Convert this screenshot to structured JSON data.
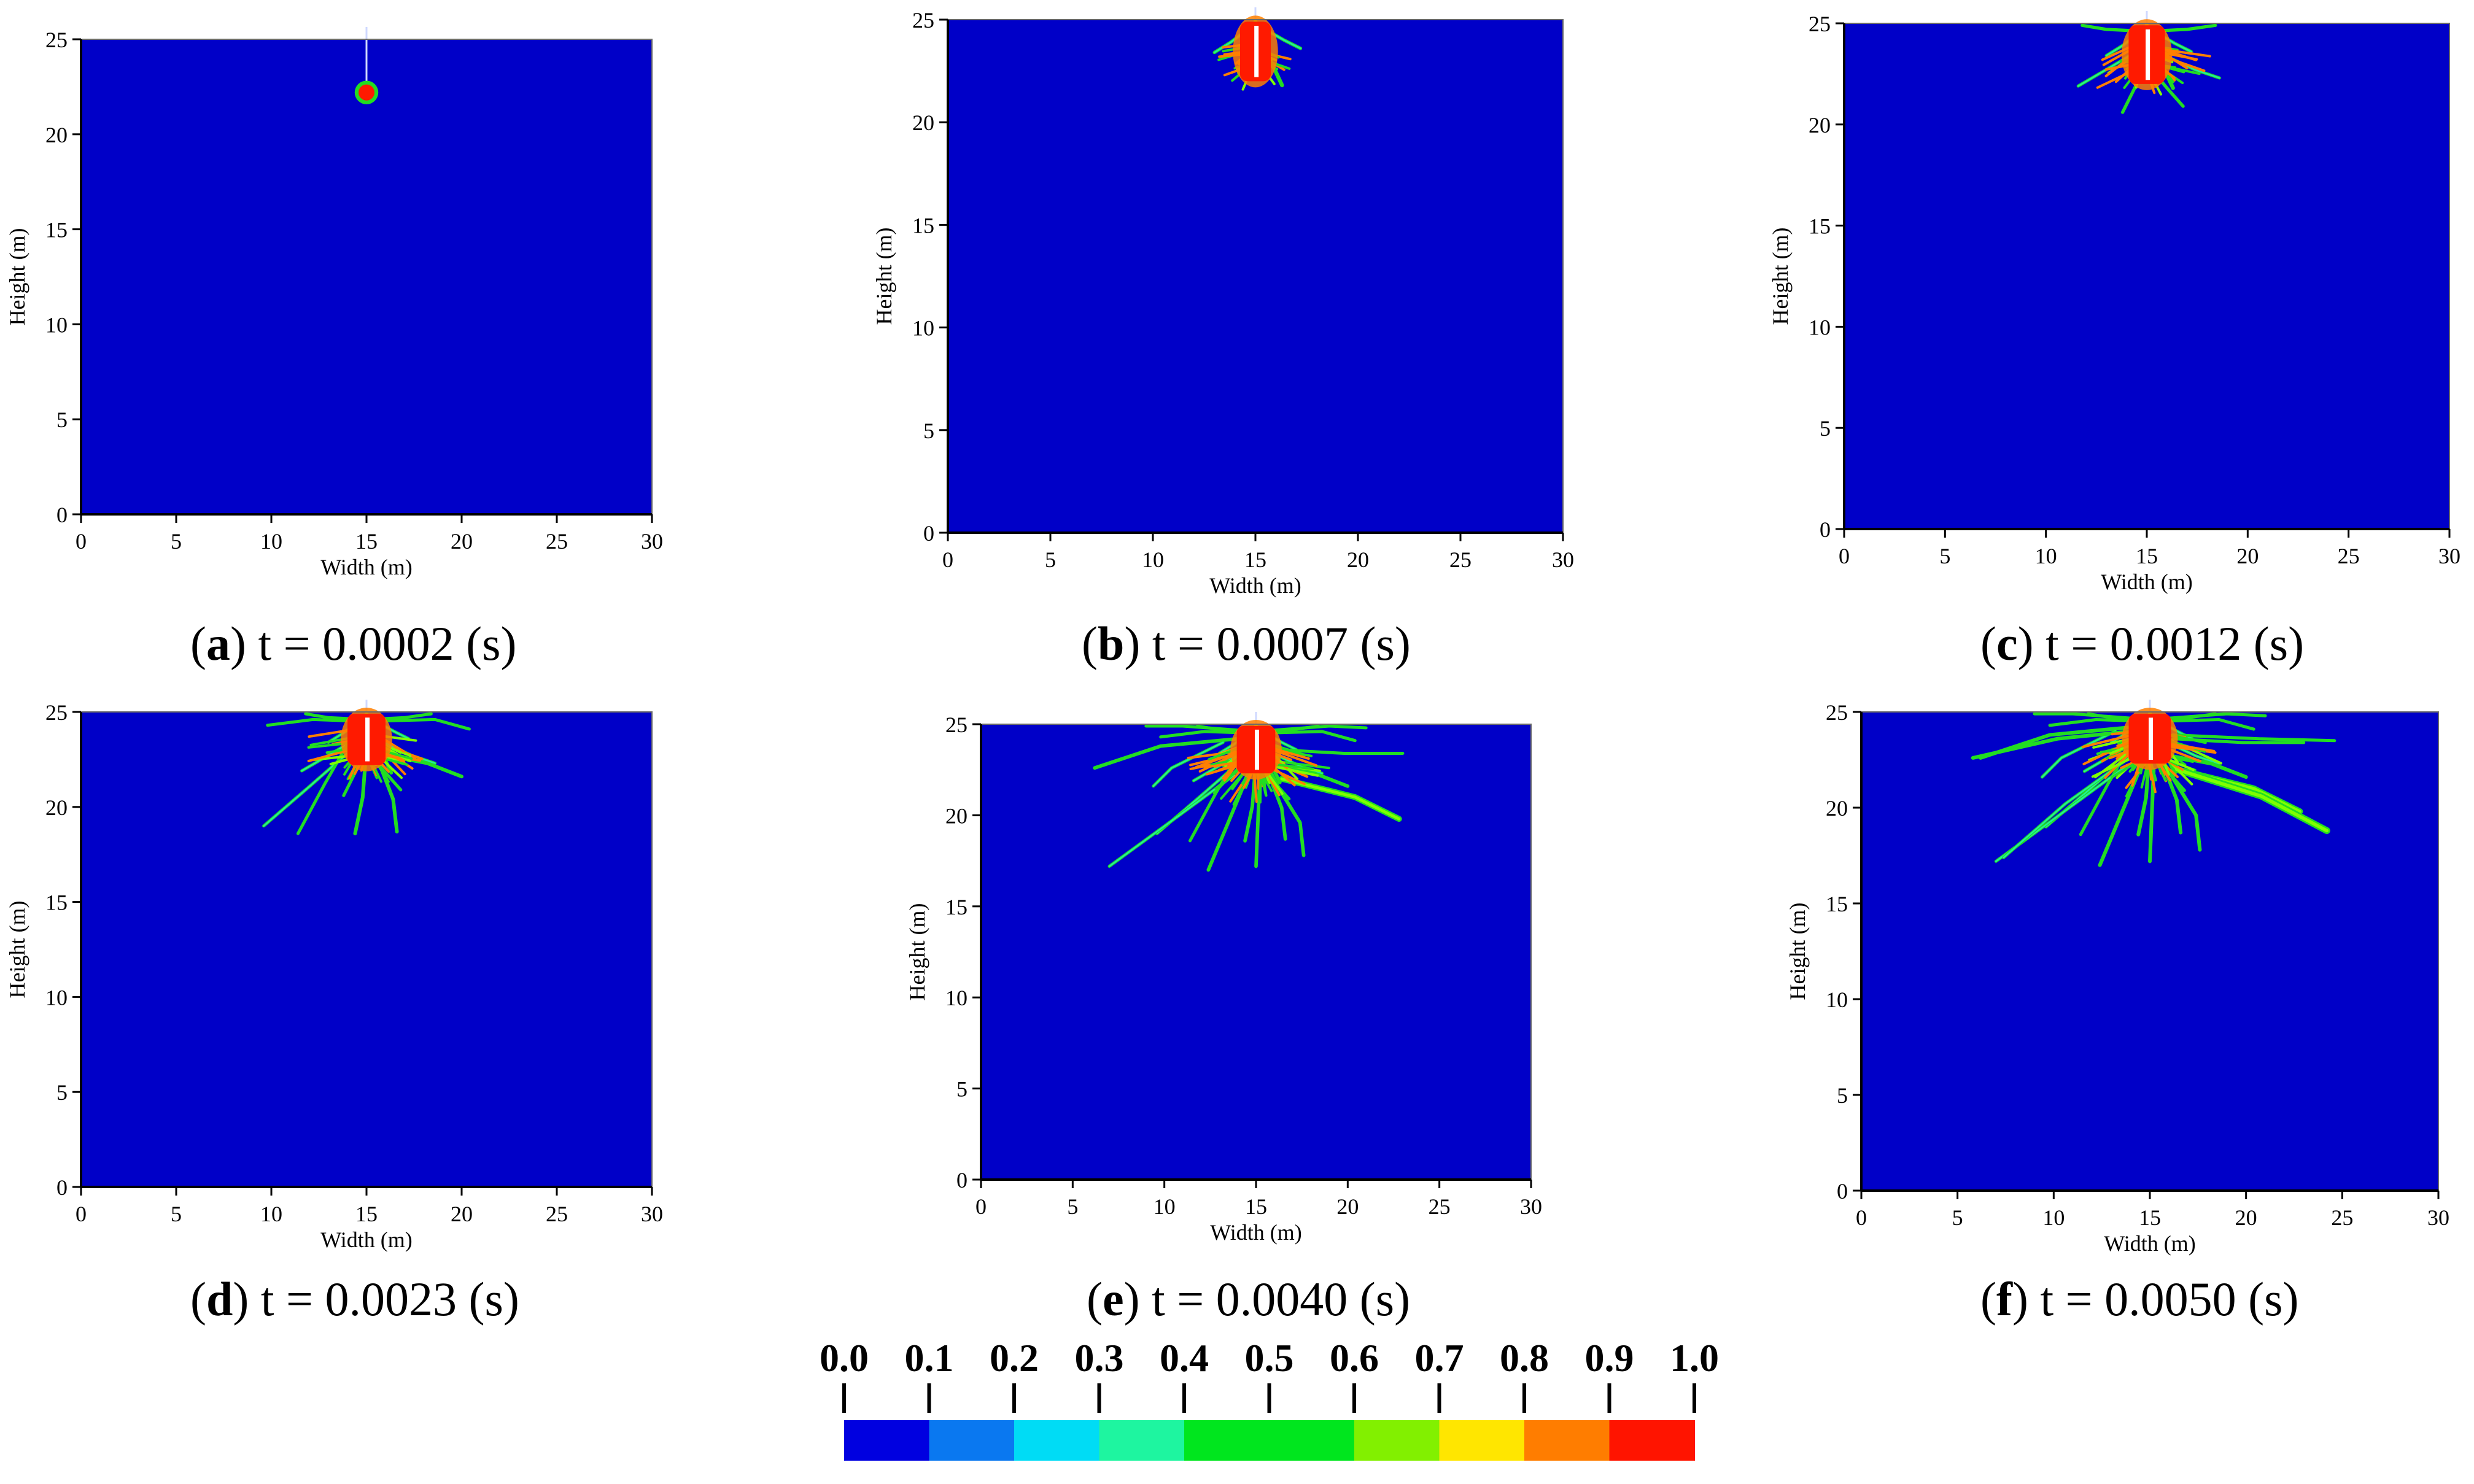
{
  "colors": {
    "background": "#0000c8",
    "frame": "#6a6a6a",
    "crack_red": "#ff1a00",
    "crack_orange": "#ff7f00",
    "crack_green": "#22dd22",
    "crack_lightgreen": "#7fff00",
    "crack_teal": "#22ee99",
    "crack_yellow": "#ffea00",
    "white": "#ffffff"
  },
  "chart_data": [
    {
      "type": "heatmap",
      "panel": "a",
      "caption_label": "a",
      "caption_text": "t = 0.0002 (s)",
      "xlabel": "Width (m)",
      "ylabel": "Height (m)",
      "xlim": [
        0,
        30
      ],
      "ylim": [
        0,
        25
      ],
      "xticks": [
        "0",
        "5",
        "10",
        "15",
        "20",
        "25",
        "30"
      ],
      "yticks": [
        "0",
        "5",
        "10",
        "15",
        "20",
        "25"
      ],
      "stage": 0
    },
    {
      "type": "heatmap",
      "panel": "b",
      "caption_label": "b",
      "caption_text": "t = 0.0007 (s)",
      "xlabel": "Width (m)",
      "ylabel": "Height (m)",
      "xlim": [
        0,
        30
      ],
      "ylim": [
        0,
        25
      ],
      "xticks": [
        "0",
        "5",
        "10",
        "15",
        "20",
        "25",
        "30"
      ],
      "yticks": [
        "0",
        "5",
        "10",
        "15",
        "20",
        "25"
      ],
      "stage": 1
    },
    {
      "type": "heatmap",
      "panel": "c",
      "caption_label": "c",
      "caption_text": "t = 0.0012 (s)",
      "xlabel": "Width (m)",
      "ylabel": "Height (m)",
      "xlim": [
        0,
        30
      ],
      "ylim": [
        0,
        25
      ],
      "xticks": [
        "0",
        "5",
        "10",
        "15",
        "20",
        "25",
        "30"
      ],
      "yticks": [
        "0",
        "5",
        "10",
        "15",
        "20",
        "25"
      ],
      "stage": 2
    },
    {
      "type": "heatmap",
      "panel": "d",
      "caption_label": "d",
      "caption_text": "t = 0.0023 (s)",
      "xlabel": "Width (m)",
      "ylabel": "Height (m)",
      "xlim": [
        0,
        30
      ],
      "ylim": [
        0,
        25
      ],
      "xticks": [
        "0",
        "5",
        "10",
        "15",
        "20",
        "25",
        "30"
      ],
      "yticks": [
        "0",
        "5",
        "10",
        "15",
        "20",
        "25"
      ],
      "stage": 3
    },
    {
      "type": "heatmap",
      "panel": "e",
      "caption_label": "e",
      "caption_text": "t = 0.0040 (s)",
      "xlabel": "Width (m)",
      "ylabel": "Height (m)",
      "xlim": [
        0,
        30
      ],
      "ylim": [
        0,
        25
      ],
      "xticks": [
        "0",
        "5",
        "10",
        "15",
        "20",
        "25",
        "30"
      ],
      "yticks": [
        "0",
        "5",
        "10",
        "15",
        "20",
        "25"
      ],
      "stage": 4
    },
    {
      "type": "heatmap",
      "panel": "f",
      "caption_label": "f",
      "caption_text": "t = 0.0050 (s)",
      "xlabel": "Width (m)",
      "ylabel": "Height (m)",
      "xlim": [
        0,
        30
      ],
      "ylim": [
        0,
        25
      ],
      "xticks": [
        "0",
        "5",
        "10",
        "15",
        "20",
        "25",
        "30"
      ],
      "yticks": [
        "0",
        "5",
        "10",
        "15",
        "20",
        "25"
      ],
      "stage": 5
    }
  ],
  "colorbar": {
    "labels": [
      "0.0",
      "0.1",
      "0.2",
      "0.3",
      "0.4",
      "0.5",
      "0.6",
      "0.7",
      "0.8",
      "0.9",
      "1.0"
    ],
    "segments": [
      {
        "from": 0.0,
        "to": 0.1,
        "color": "#0000e0"
      },
      {
        "from": 0.1,
        "to": 0.2,
        "color": "#0a78f0"
      },
      {
        "from": 0.2,
        "to": 0.3,
        "color": "#00dcf5"
      },
      {
        "from": 0.3,
        "to": 0.4,
        "color": "#1ef5a0"
      },
      {
        "from": 0.4,
        "to": 0.6,
        "color": "#00e61e"
      },
      {
        "from": 0.6,
        "to": 0.7,
        "color": "#82f000"
      },
      {
        "from": 0.7,
        "to": 0.8,
        "color": "#ffe600"
      },
      {
        "from": 0.8,
        "to": 0.9,
        "color": "#ff7d00"
      },
      {
        "from": 0.9,
        "to": 1.0,
        "color": "#ff1400"
      }
    ]
  }
}
